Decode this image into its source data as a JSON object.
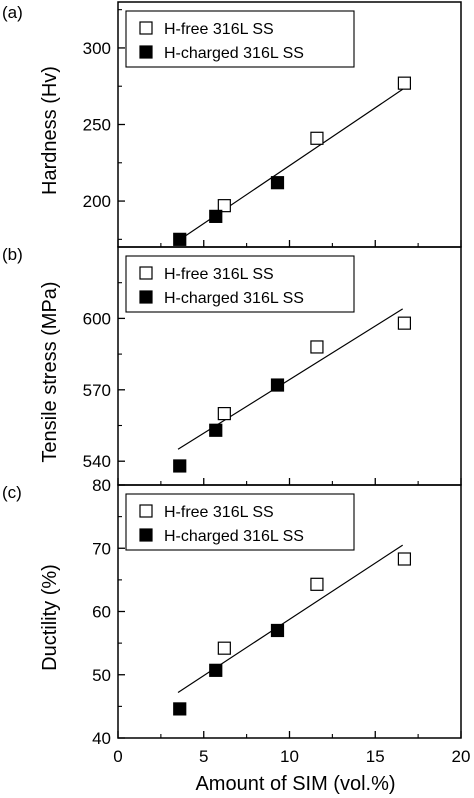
{
  "chart_data": [
    {
      "type": "scatter",
      "panel_label": "(a)",
      "xlabel": "",
      "ylabel": "Hardness (Hv)",
      "xlim": [
        0,
        20
      ],
      "ylim": [
        170,
        330
      ],
      "yticks": [
        200,
        250,
        300
      ],
      "grid": false,
      "legend": "top-left",
      "fit_line": {
        "x": [
          3.5,
          16.6
        ],
        "y": [
          174,
          273
        ]
      },
      "series": [
        {
          "name": "H-free 316L SS",
          "marker": "open-square",
          "x": [
            6.2,
            11.6,
            16.7
          ],
          "y": [
            197,
            241,
            277
          ]
        },
        {
          "name": "H-charged 316L SS",
          "marker": "filled-square",
          "x": [
            3.6,
            5.7,
            9.3
          ],
          "y": [
            175,
            190,
            212
          ]
        }
      ]
    },
    {
      "type": "scatter",
      "panel_label": "(b)",
      "xlabel": "",
      "ylabel": "Tensile stress (MPa)",
      "xlim": [
        0,
        20
      ],
      "ylim": [
        530,
        630
      ],
      "yticks": [
        540,
        570,
        600
      ],
      "grid": false,
      "legend": "top-left",
      "fit_line": {
        "x": [
          3.5,
          16.6
        ],
        "y": [
          545,
          604
        ]
      },
      "series": [
        {
          "name": "H-free 316L SS",
          "marker": "open-square",
          "x": [
            6.2,
            11.6,
            16.7
          ],
          "y": [
            560,
            588,
            598
          ]
        },
        {
          "name": "H-charged 316L SS",
          "marker": "filled-square",
          "x": [
            3.6,
            5.7,
            9.3
          ],
          "y": [
            538,
            553,
            572
          ]
        }
      ]
    },
    {
      "type": "scatter",
      "panel_label": "(c)",
      "xlabel": "Amount of SIM (vol.%)",
      "ylabel": "Ductility (%)",
      "xlim": [
        0,
        20
      ],
      "ylim": [
        40,
        80
      ],
      "yticks": [
        40,
        50,
        60,
        70,
        80
      ],
      "xticks": [
        0,
        5,
        10,
        15,
        20
      ],
      "grid": false,
      "legend": "top-left",
      "fit_line": {
        "x": [
          3.5,
          16.6
        ],
        "y": [
          47.2,
          70.5
        ]
      },
      "series": [
        {
          "name": "H-free 316L SS",
          "marker": "open-square",
          "x": [
            6.2,
            11.6,
            16.7
          ],
          "y": [
            54.2,
            64.3,
            68.3
          ]
        },
        {
          "name": "H-charged 316L SS",
          "marker": "filled-square",
          "x": [
            3.6,
            5.7,
            9.3
          ],
          "y": [
            44.6,
            50.7,
            57.0
          ]
        }
      ]
    }
  ]
}
